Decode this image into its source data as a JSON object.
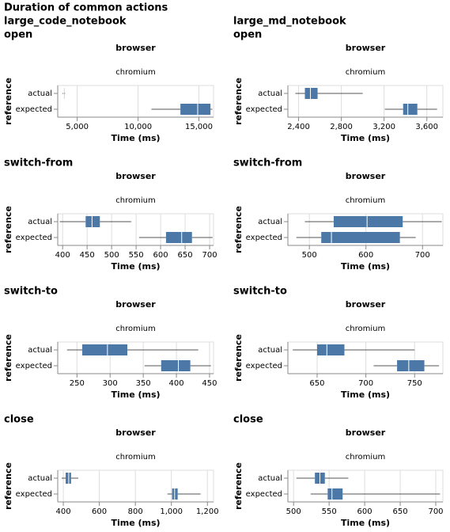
{
  "title": "Duration of common actions",
  "chart_data": [
    {
      "type": "boxplot",
      "title": [
        "large_code_notebook",
        "open"
      ],
      "column_title": "browser",
      "facet": "chromium",
      "ylabel": "reference",
      "xlabel": "Time (ms)",
      "color": "#4c78a8",
      "categories": [
        "actual",
        "expected"
      ],
      "boxes": [
        {
          "min": 3800,
          "q1": 3880,
          "median": 3900,
          "q3": 3920,
          "max": 4000
        },
        {
          "min": 11100,
          "q1": 13480,
          "median": 14900,
          "q3": 15950,
          "max": 16100
        }
      ],
      "xlim": [
        3400,
        16200
      ],
      "xticks": [
        {
          "value": 5000,
          "label": "5,000"
        },
        {
          "value": 10000,
          "label": "10,000"
        },
        {
          "value": 15000,
          "label": "15,000"
        }
      ],
      "grid": true
    },
    {
      "type": "boxplot",
      "title": [
        "large_md_notebook",
        "open"
      ],
      "column_title": "browser",
      "facet": "chromium",
      "ylabel": "reference",
      "xlabel": "Time (ms)",
      "color": "#4c78a8",
      "categories": [
        "actual",
        "expected"
      ],
      "boxes": [
        {
          "min": 2370,
          "q1": 2459,
          "median": 2511,
          "q3": 2578,
          "max": 3000
        },
        {
          "min": 3207,
          "q1": 3378,
          "median": 3422,
          "q3": 3511,
          "max": 3696
        }
      ],
      "xlim": [
        2300,
        3750
      ],
      "xticks": [
        {
          "value": 2400,
          "label": "2,400"
        },
        {
          "value": 2800,
          "label": "2,800"
        },
        {
          "value": 3200,
          "label": "3,200"
        },
        {
          "value": 3600,
          "label": "3,600"
        }
      ],
      "grid": true
    },
    {
      "type": "boxplot",
      "title": [
        "switch-from"
      ],
      "column_title": "browser",
      "facet": "chromium",
      "ylabel": "reference",
      "xlabel": "Time (ms)",
      "color": "#4c78a8",
      "categories": [
        "actual",
        "expected"
      ],
      "boxes": [
        {
          "min": 394,
          "q1": 447,
          "median": 460,
          "q3": 476,
          "max": 540
        },
        {
          "min": 556,
          "q1": 611,
          "median": 643,
          "q3": 664,
          "max": 706
        }
      ],
      "xlim": [
        390,
        708
      ],
      "xticks": [
        400,
        450,
        500,
        550,
        600,
        650,
        700
      ],
      "grid": true
    },
    {
      "type": "boxplot",
      "title": [
        "switch-from"
      ],
      "column_title": "browser",
      "facet": "chromium",
      "ylabel": "reference",
      "xlabel": "Time (ms)",
      "color": "#4c78a8",
      "categories": [
        "actual",
        "expected"
      ],
      "boxes": [
        {
          "min": 492,
          "q1": 543,
          "median": 602,
          "q3": 665,
          "max": 734
        },
        {
          "min": 477,
          "q1": 521,
          "median": 539,
          "q3": 660,
          "max": 688
        }
      ],
      "xlim": [
        462,
        736
      ],
      "xticks": [
        500,
        600,
        700
      ],
      "grid": true
    },
    {
      "type": "boxplot",
      "title": [
        "switch-to"
      ],
      "column_title": "browser",
      "facet": "chromium",
      "ylabel": "reference",
      "xlabel": "Time (ms)",
      "color": "#4c78a8",
      "categories": [
        "actual",
        "expected"
      ],
      "boxes": [
        {
          "min": 235,
          "q1": 258,
          "median": 296,
          "q3": 326,
          "max": 433
        },
        {
          "min": 352,
          "q1": 377,
          "median": 403,
          "q3": 421,
          "max": 452
        }
      ],
      "xlim": [
        221,
        456
      ],
      "xticks": [
        250,
        300,
        350,
        400,
        450
      ],
      "grid": true
    },
    {
      "type": "boxplot",
      "title": [
        "switch-to"
      ],
      "column_title": "browser",
      "facet": "chromium",
      "ylabel": "reference",
      "xlabel": "Time (ms)",
      "color": "#4c78a8",
      "categories": [
        "actual",
        "expected"
      ],
      "boxes": [
        {
          "min": 625,
          "q1": 650,
          "median": 660,
          "q3": 678,
          "max": 750
        },
        {
          "min": 708,
          "q1": 732,
          "median": 744,
          "q3": 760,
          "max": 775
        }
      ],
      "xlim": [
        620,
        779
      ],
      "xticks": [
        650,
        700,
        750
      ],
      "grid": true
    },
    {
      "type": "boxplot",
      "title": [
        "close"
      ],
      "column_title": "browser",
      "facet": "chromium",
      "ylabel": "reference",
      "xlabel": "Time (ms)",
      "color": "#4c78a8",
      "categories": [
        "actual",
        "expected"
      ],
      "boxes": [
        {
          "min": 391,
          "q1": 413,
          "median": 430,
          "q3": 443,
          "max": 483
        },
        {
          "min": 978,
          "q1": 1004,
          "median": 1018,
          "q3": 1035,
          "max": 1162
        }
      ],
      "xlim": [
        369,
        1234
      ],
      "xticks": [
        400,
        600,
        800,
        {
          "value": 1000,
          "label": "1,000"
        },
        {
          "value": 1200,
          "label": "1,200"
        }
      ],
      "grid": true
    },
    {
      "type": "boxplot",
      "title": [
        "close"
      ],
      "column_title": "browser",
      "facet": "chromium",
      "ylabel": "reference",
      "xlabel": "Time (ms)",
      "color": "#4c78a8",
      "categories": [
        "actual",
        "expected"
      ],
      "boxes": [
        {
          "min": 504,
          "q1": 530,
          "median": 537,
          "q3": 544,
          "max": 577
        },
        {
          "min": 524,
          "q1": 548,
          "median": 554,
          "q3": 569,
          "max": 706
        }
      ],
      "xlim": [
        492,
        710
      ],
      "xticks": [
        500,
        550,
        600,
        650,
        700
      ],
      "grid": true
    }
  ]
}
